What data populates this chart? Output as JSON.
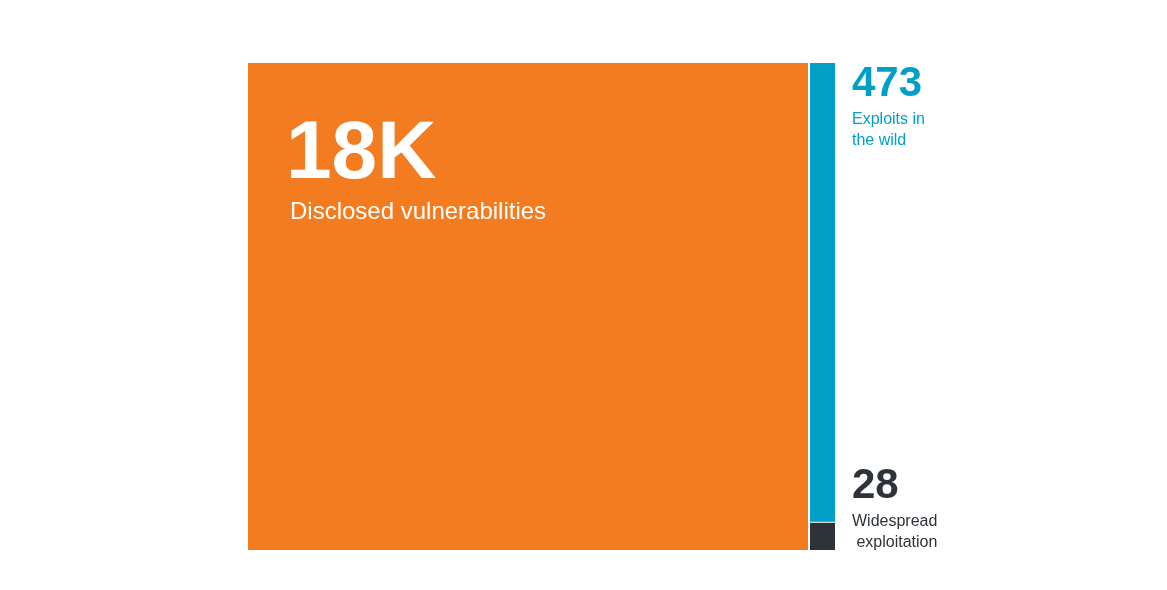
{
  "chart_data": {
    "type": "other",
    "categories": [
      "Disclosed vulnerabilities",
      "Exploits in the wild",
      "Widespread exploitation"
    ],
    "values": [
      18000,
      473,
      28
    ],
    "value_labels": [
      "18K",
      "473",
      "28"
    ],
    "colors": [
      "#f47c20",
      "#00a0c6",
      "#2d3339"
    ]
  }
}
